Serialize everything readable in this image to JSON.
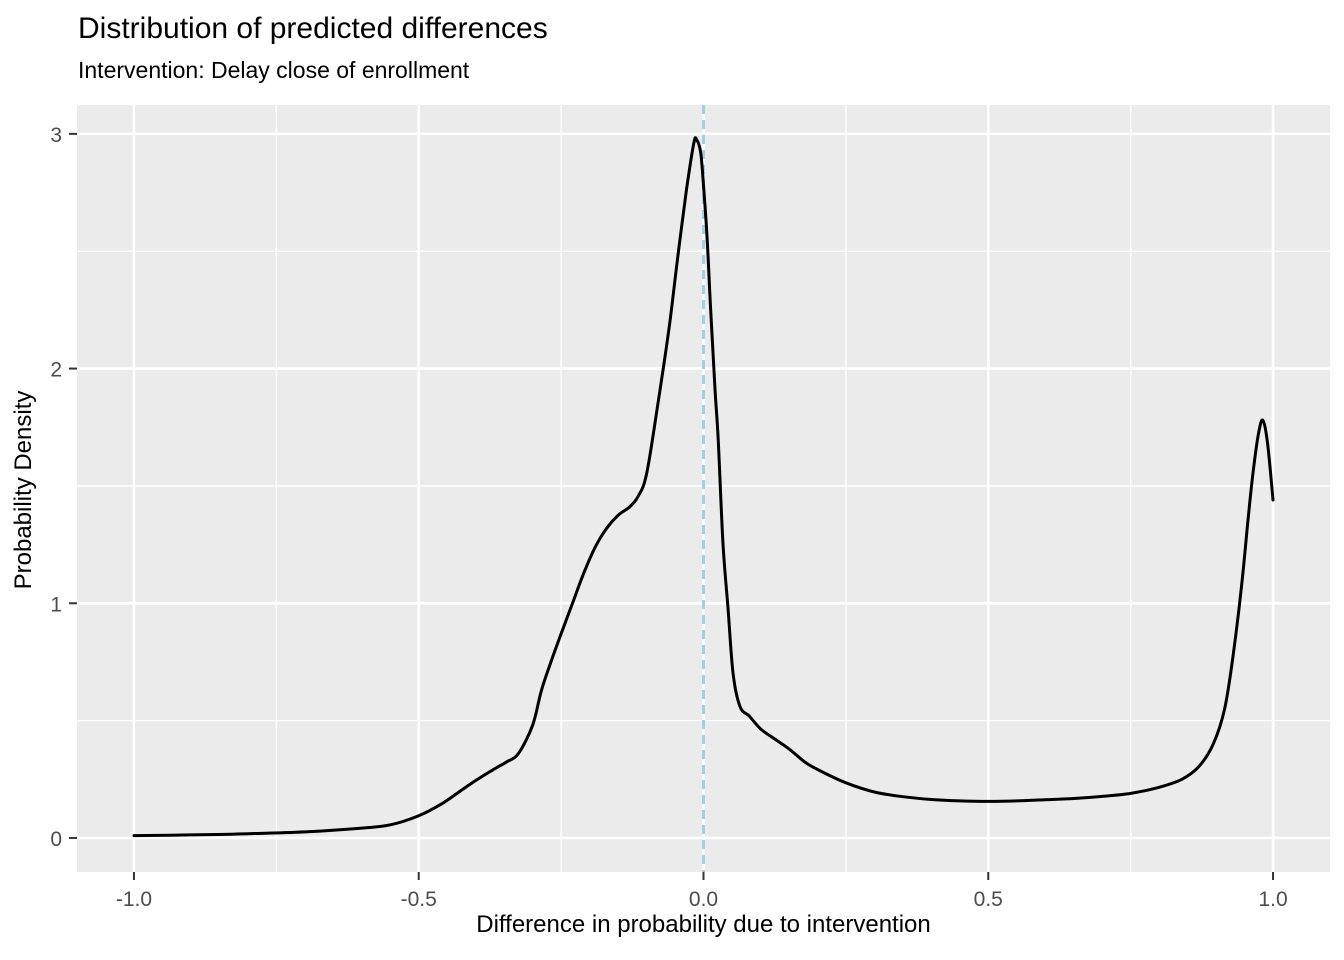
{
  "chart_data": {
    "type": "line",
    "title": "Distribution of predicted differences",
    "subtitle": "Intervention: Delay close of enrollment",
    "xlabel": "Difference in probability due to intervention",
    "ylabel": "Probability Density",
    "xlim": [
      -1.1,
      1.1
    ],
    "ylim": [
      -0.145,
      3.123
    ],
    "grid": true,
    "legend": "none",
    "colors": {
      "panel_background": "#EBEBEB",
      "gridline": "#FFFFFF",
      "tick_label": "#4D4D4D",
      "tick_mark": "#333333",
      "curve": "#000000",
      "title_text": "#000000"
    },
    "x_axis": {
      "tick_values": [
        -1.0,
        -0.5,
        0.0,
        0.5,
        1.0
      ],
      "tick_labels": [
        "-1.0",
        "-0.5",
        "0.0",
        "0.5",
        "1.0"
      ],
      "minor_tick_values": [
        -0.75,
        -0.25,
        0.25,
        0.75
      ]
    },
    "y_axis": {
      "tick_values": [
        0,
        1,
        2,
        3
      ],
      "tick_labels": [
        "0",
        "1",
        "2",
        "3"
      ],
      "minor_tick_values": [
        0.5,
        1.5,
        2.5
      ]
    },
    "reference_line": {
      "x": 0.0,
      "style": "dashed",
      "color": "#9CD2E6"
    },
    "series": [
      {
        "name": "predicted-difference-density",
        "points": [
          [
            -1.0,
            0.01
          ],
          [
            -0.9,
            0.013
          ],
          [
            -0.8,
            0.018
          ],
          [
            -0.7,
            0.026
          ],
          [
            -0.6,
            0.042
          ],
          [
            -0.55,
            0.056
          ],
          [
            -0.5,
            0.095
          ],
          [
            -0.46,
            0.145
          ],
          [
            -0.43,
            0.195
          ],
          [
            -0.4,
            0.245
          ],
          [
            -0.37,
            0.29
          ],
          [
            -0.345,
            0.325
          ],
          [
            -0.325,
            0.36
          ],
          [
            -0.3,
            0.48
          ],
          [
            -0.285,
            0.625
          ],
          [
            -0.27,
            0.735
          ],
          [
            -0.25,
            0.87
          ],
          [
            -0.23,
            1.0
          ],
          [
            -0.21,
            1.13
          ],
          [
            -0.19,
            1.24
          ],
          [
            -0.17,
            1.32
          ],
          [
            -0.15,
            1.375
          ],
          [
            -0.13,
            1.41
          ],
          [
            -0.115,
            1.455
          ],
          [
            -0.1,
            1.55
          ],
          [
            -0.08,
            1.85
          ],
          [
            -0.06,
            2.18
          ],
          [
            -0.045,
            2.48
          ],
          [
            -0.03,
            2.76
          ],
          [
            -0.017,
            2.96
          ],
          [
            -0.012,
            2.975
          ],
          [
            -0.005,
            2.92
          ],
          [
            0.0,
            2.78
          ],
          [
            0.006,
            2.57
          ],
          [
            0.012,
            2.28
          ],
          [
            0.02,
            1.92
          ],
          [
            0.026,
            1.69
          ],
          [
            0.034,
            1.26
          ],
          [
            0.043,
            0.98
          ],
          [
            0.052,
            0.7
          ],
          [
            0.064,
            0.56
          ],
          [
            0.08,
            0.52
          ],
          [
            0.1,
            0.465
          ],
          [
            0.12,
            0.43
          ],
          [
            0.15,
            0.38
          ],
          [
            0.18,
            0.32
          ],
          [
            0.21,
            0.28
          ],
          [
            0.25,
            0.235
          ],
          [
            0.3,
            0.196
          ],
          [
            0.35,
            0.176
          ],
          [
            0.4,
            0.164
          ],
          [
            0.45,
            0.158
          ],
          [
            0.5,
            0.156
          ],
          [
            0.55,
            0.158
          ],
          [
            0.6,
            0.163
          ],
          [
            0.65,
            0.168
          ],
          [
            0.7,
            0.177
          ],
          [
            0.75,
            0.19
          ],
          [
            0.8,
            0.216
          ],
          [
            0.84,
            0.25
          ],
          [
            0.87,
            0.305
          ],
          [
            0.895,
            0.4
          ],
          [
            0.915,
            0.55
          ],
          [
            0.93,
            0.78
          ],
          [
            0.945,
            1.08
          ],
          [
            0.957,
            1.38
          ],
          [
            0.967,
            1.6
          ],
          [
            0.975,
            1.73
          ],
          [
            0.982,
            1.78
          ],
          [
            0.99,
            1.69
          ],
          [
            1.0,
            1.44
          ]
        ]
      }
    ]
  }
}
